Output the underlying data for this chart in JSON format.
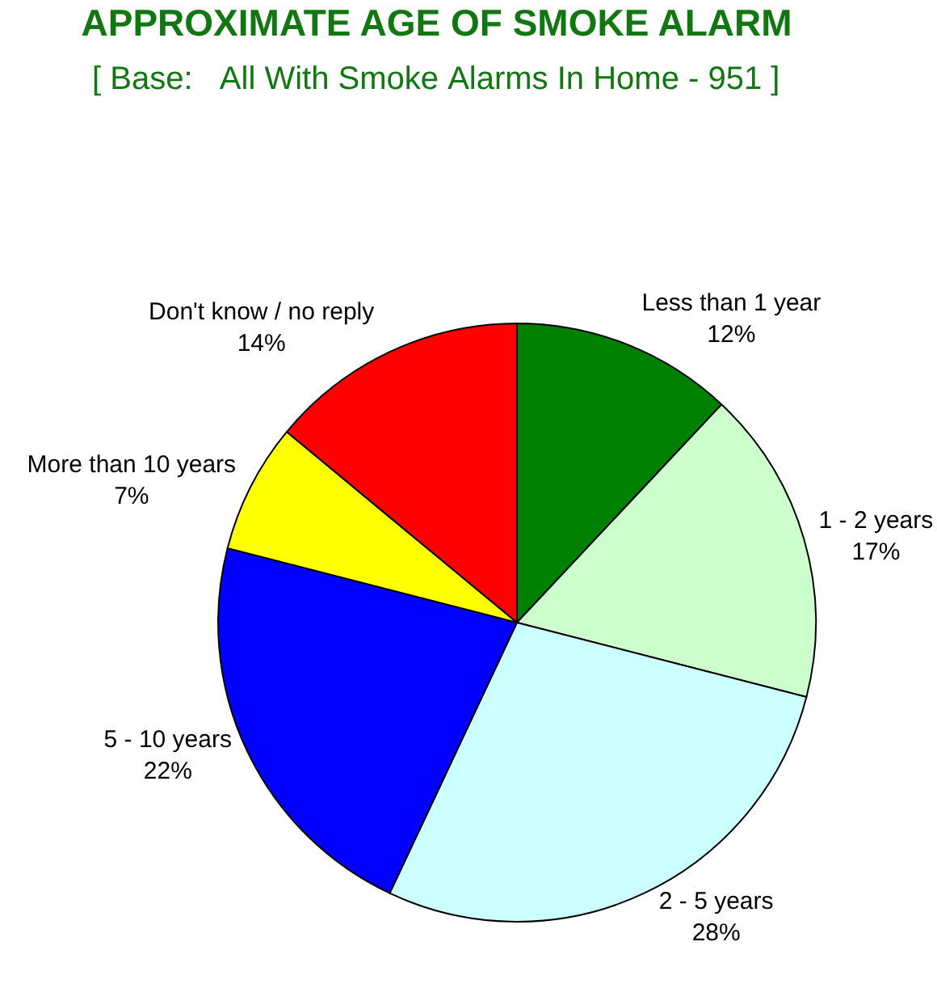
{
  "chart_data": {
    "type": "pie",
    "title": "APPROXIMATE AGE OF SMOKE ALARM",
    "subtitle": "[ Base:   All With Smoke Alarms In Home - 951 ]",
    "categories": [
      "Less than 1 year",
      "1 - 2 years",
      "2 - 5 years",
      "5 - 10 years",
      "More than 10 years",
      "Don't know / no reply"
    ],
    "values": [
      12,
      17,
      28,
      22,
      7,
      14
    ],
    "colors": [
      "#008000",
      "#ccffcc",
      "#ccffff",
      "#0000ff",
      "#ffff00",
      "#ff0000"
    ],
    "value_labels": [
      "12%",
      "17%",
      "28%",
      "22%",
      "7%",
      "14%"
    ]
  }
}
